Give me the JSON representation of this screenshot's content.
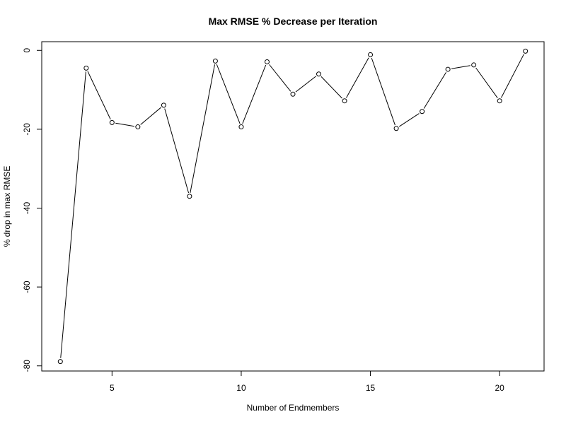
{
  "chart_data": {
    "type": "line",
    "title": "Max RMSE % Decrease per Iteration",
    "xlabel": "Number of Endmembers",
    "ylabel": "% drop in max RMSE",
    "x": [
      3,
      4,
      5,
      6,
      7,
      8,
      9,
      10,
      11,
      12,
      13,
      14,
      15,
      16,
      17,
      18,
      19,
      20,
      21
    ],
    "y": [
      -78.9,
      -4.5,
      -18.3,
      -19.4,
      -13.9,
      -37.0,
      -2.7,
      -19.4,
      -2.9,
      -11.1,
      -6.0,
      -12.8,
      -1.1,
      -19.8,
      -15.5,
      -4.8,
      -3.7,
      -12.8,
      -0.2
    ],
    "xlim": [
      2.28,
      21.72
    ],
    "ylim": [
      -81.3,
      2.2
    ],
    "xticks": [
      "5",
      "10",
      "15",
      "20"
    ],
    "yticks": [
      "0",
      "-20",
      "-40",
      "-60",
      "-80"
    ],
    "grid": false,
    "legend": "none",
    "line_color": "#000000",
    "marker": "open-circle"
  }
}
